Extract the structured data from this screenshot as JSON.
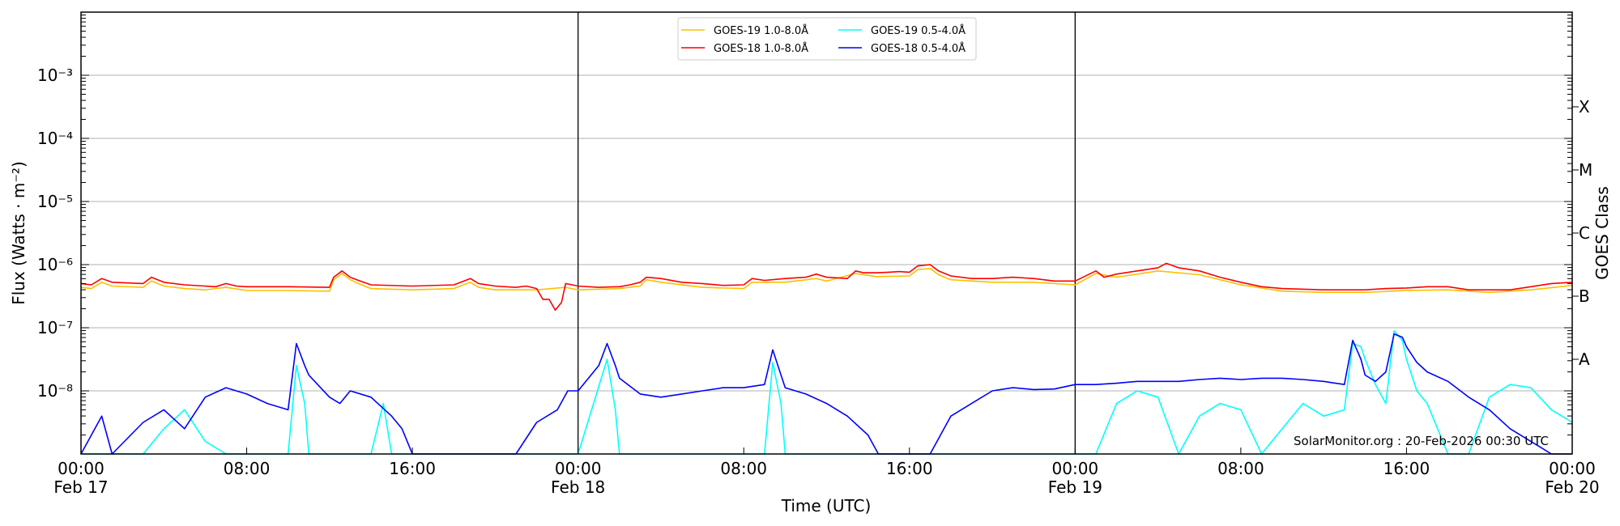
{
  "chart_data": {
    "type": "line",
    "title": "",
    "xlabel": "Time (UTC)",
    "ylabel": "Flux (Watts · m⁻²)",
    "ylabel_right": "GOES Class",
    "yscale": "log",
    "ylim": [
      1e-09,
      0.01
    ],
    "xlim_hours": [
      0,
      72
    ],
    "grid": "horizontal at each decade",
    "y_ticks": [
      "10⁻³",
      "10⁻⁴",
      "10⁻⁵",
      "10⁻⁶",
      "10⁻⁷",
      "10⁻⁸"
    ],
    "y_tick_exponents": [
      -3,
      -4,
      -5,
      -6,
      -7,
      -8
    ],
    "right_ticks": [
      {
        "label": "X",
        "log": -3.5
      },
      {
        "label": "M",
        "log": -4.5
      },
      {
        "label": "C",
        "log": -5.5
      },
      {
        "label": "B",
        "log": -6.5
      },
      {
        "label": "A",
        "log": -7.5
      }
    ],
    "x_ticks": [
      {
        "hour": 0,
        "line1": "00:00",
        "line2": "Feb 17"
      },
      {
        "hour": 8,
        "line1": "08:00",
        "line2": ""
      },
      {
        "hour": 16,
        "line1": "16:00",
        "line2": ""
      },
      {
        "hour": 24,
        "line1": "00:00",
        "line2": "Feb 18"
      },
      {
        "hour": 32,
        "line1": "08:00",
        "line2": ""
      },
      {
        "hour": 40,
        "line1": "16:00",
        "line2": ""
      },
      {
        "hour": 48,
        "line1": "00:00",
        "line2": "Feb 19"
      },
      {
        "hour": 56,
        "line1": "08:00",
        "line2": ""
      },
      {
        "hour": 64,
        "line1": "16:00",
        "line2": ""
      },
      {
        "hour": 72,
        "line1": "00:00",
        "line2": "Feb 20"
      }
    ],
    "day_boundaries_hours": [
      24,
      48
    ],
    "legend": {
      "position": "upper center",
      "entries": [
        {
          "label": "GOES-19 1.0-8.0Å",
          "color": "#FFC000"
        },
        {
          "label": "GOES-18 1.0-8.0Å",
          "color": "#FF0000"
        },
        {
          "label": "GOES-19 0.5-4.0Å",
          "color": "#00FFFF"
        },
        {
          "label": "GOES-18 0.5-4.0Å",
          "color": "#0000FF"
        }
      ]
    },
    "annotation": "SolarMonitor.org : 20-Feb-2026 00:30 UTC",
    "series": [
      {
        "name": "GOES-18 1.0-8.0Å",
        "color": "#FF0000",
        "points_hour_log10": [
          [
            0,
            -6.3
          ],
          [
            0.5,
            -6.32
          ],
          [
            1,
            -6.22
          ],
          [
            1.5,
            -6.28
          ],
          [
            3,
            -6.3
          ],
          [
            3.4,
            -6.2
          ],
          [
            4,
            -6.28
          ],
          [
            5,
            -6.32
          ],
          [
            6,
            -6.34
          ],
          [
            6.5,
            -6.35
          ],
          [
            7,
            -6.3
          ],
          [
            7.5,
            -6.34
          ],
          [
            8,
            -6.35
          ],
          [
            10,
            -6.35
          ],
          [
            12,
            -6.36
          ],
          [
            12.2,
            -6.2
          ],
          [
            12.6,
            -6.1
          ],
          [
            13,
            -6.2
          ],
          [
            13.4,
            -6.25
          ],
          [
            14,
            -6.32
          ],
          [
            16,
            -6.34
          ],
          [
            18,
            -6.32
          ],
          [
            18.8,
            -6.22
          ],
          [
            19.2,
            -6.3
          ],
          [
            20,
            -6.34
          ],
          [
            21,
            -6.36
          ],
          [
            21.5,
            -6.34
          ],
          [
            22,
            -6.38
          ],
          [
            22.3,
            -6.55
          ],
          [
            22.6,
            -6.55
          ],
          [
            22.9,
            -6.72
          ],
          [
            23.2,
            -6.6
          ],
          [
            23.4,
            -6.3
          ],
          [
            24,
            -6.34
          ],
          [
            25,
            -6.36
          ],
          [
            26,
            -6.35
          ],
          [
            26.5,
            -6.32
          ],
          [
            27,
            -6.28
          ],
          [
            27.3,
            -6.2
          ],
          [
            28,
            -6.22
          ],
          [
            29,
            -6.28
          ],
          [
            30,
            -6.3
          ],
          [
            31,
            -6.33
          ],
          [
            32,
            -6.32
          ],
          [
            32.4,
            -6.22
          ],
          [
            33,
            -6.25
          ],
          [
            34,
            -6.22
          ],
          [
            35,
            -6.2
          ],
          [
            35.5,
            -6.15
          ],
          [
            36,
            -6.2
          ],
          [
            37,
            -6.22
          ],
          [
            37.4,
            -6.1
          ],
          [
            37.8,
            -6.13
          ],
          [
            38.4,
            -6.13
          ],
          [
            39,
            -6.12
          ],
          [
            39.5,
            -6.11
          ],
          [
            40,
            -6.12
          ],
          [
            40.4,
            -6.02
          ],
          [
            41,
            -6.0
          ],
          [
            41.4,
            -6.1
          ],
          [
            42,
            -6.18
          ],
          [
            43,
            -6.22
          ],
          [
            44,
            -6.22
          ],
          [
            45,
            -6.2
          ],
          [
            46,
            -6.22
          ],
          [
            47,
            -6.26
          ],
          [
            48,
            -6.26
          ],
          [
            49,
            -6.1
          ],
          [
            49.4,
            -6.2
          ],
          [
            50,
            -6.15
          ],
          [
            51,
            -6.1
          ],
          [
            52,
            -6.05
          ],
          [
            52.4,
            -5.98
          ],
          [
            53,
            -6.05
          ],
          [
            54,
            -6.1
          ],
          [
            55,
            -6.2
          ],
          [
            56,
            -6.28
          ],
          [
            57,
            -6.35
          ],
          [
            58,
            -6.38
          ],
          [
            60,
            -6.4
          ],
          [
            62,
            -6.4
          ],
          [
            63,
            -6.38
          ],
          [
            64,
            -6.37
          ],
          [
            65,
            -6.35
          ],
          [
            66,
            -6.35
          ],
          [
            67,
            -6.4
          ],
          [
            68,
            -6.4
          ],
          [
            69,
            -6.4
          ],
          [
            70,
            -6.35
          ],
          [
            71,
            -6.3
          ],
          [
            72,
            -6.28
          ]
        ]
      },
      {
        "name": "GOES-19 1.0-8.0Å",
        "color": "#FFC000",
        "points_hour_log10": [
          [
            0,
            -6.36
          ],
          [
            0.5,
            -6.38
          ],
          [
            1,
            -6.28
          ],
          [
            1.5,
            -6.34
          ],
          [
            3,
            -6.36
          ],
          [
            3.4,
            -6.26
          ],
          [
            4,
            -6.34
          ],
          [
            5,
            -6.38
          ],
          [
            6,
            -6.4
          ],
          [
            7,
            -6.36
          ],
          [
            8,
            -6.41
          ],
          [
            10,
            -6.41
          ],
          [
            12,
            -6.42
          ],
          [
            12.2,
            -6.24
          ],
          [
            12.6,
            -6.14
          ],
          [
            13,
            -6.24
          ],
          [
            13.4,
            -6.3
          ],
          [
            14,
            -6.38
          ],
          [
            16,
            -6.4
          ],
          [
            18,
            -6.38
          ],
          [
            18.8,
            -6.28
          ],
          [
            19.2,
            -6.36
          ],
          [
            20,
            -6.4
          ],
          [
            22,
            -6.4
          ],
          [
            23.4,
            -6.36
          ],
          [
            24,
            -6.4
          ],
          [
            26,
            -6.38
          ],
          [
            27,
            -6.34
          ],
          [
            27.3,
            -6.24
          ],
          [
            28,
            -6.28
          ],
          [
            30,
            -6.36
          ],
          [
            32,
            -6.38
          ],
          [
            32.4,
            -6.28
          ],
          [
            34,
            -6.28
          ],
          [
            35.5,
            -6.22
          ],
          [
            36,
            -6.26
          ],
          [
            37.4,
            -6.14
          ],
          [
            38.4,
            -6.19
          ],
          [
            40,
            -6.18
          ],
          [
            40.4,
            -6.08
          ],
          [
            41,
            -6.06
          ],
          [
            41.4,
            -6.16
          ],
          [
            42,
            -6.24
          ],
          [
            44,
            -6.28
          ],
          [
            46,
            -6.28
          ],
          [
            48,
            -6.32
          ],
          [
            49,
            -6.14
          ],
          [
            50,
            -6.2
          ],
          [
            52,
            -6.1
          ],
          [
            54,
            -6.16
          ],
          [
            56,
            -6.32
          ],
          [
            58,
            -6.42
          ],
          [
            60,
            -6.44
          ],
          [
            62,
            -6.44
          ],
          [
            64,
            -6.41
          ],
          [
            66,
            -6.4
          ],
          [
            68,
            -6.44
          ],
          [
            70,
            -6.4
          ],
          [
            72,
            -6.33
          ]
        ]
      },
      {
        "name": "GOES-18 0.5-4.0Å",
        "color": "#0000FF",
        "points_hour_log10": [
          [
            0,
            -9
          ],
          [
            1,
            -8.4
          ],
          [
            1.5,
            -9
          ],
          [
            3,
            -8.5
          ],
          [
            4,
            -8.3
          ],
          [
            5,
            -8.6
          ],
          [
            6,
            -8.1
          ],
          [
            7,
            -7.95
          ],
          [
            8,
            -8.05
          ],
          [
            9,
            -8.2
          ],
          [
            10,
            -8.3
          ],
          [
            10.4,
            -7.25
          ],
          [
            10.8,
            -7.6
          ],
          [
            11,
            -7.75
          ],
          [
            12,
            -8.1
          ],
          [
            12.5,
            -8.2
          ],
          [
            13,
            -8.0
          ],
          [
            14,
            -8.1
          ],
          [
            15,
            -8.4
          ],
          [
            15.5,
            -8.6
          ],
          [
            16,
            -9
          ],
          [
            18,
            -9
          ],
          [
            20,
            -9
          ],
          [
            21,
            -9
          ],
          [
            22,
            -8.5
          ],
          [
            23,
            -8.3
          ],
          [
            23.5,
            -8.0
          ],
          [
            24,
            -8.0
          ],
          [
            25,
            -7.6
          ],
          [
            25.4,
            -7.25
          ],
          [
            25.8,
            -7.6
          ],
          [
            26,
            -7.8
          ],
          [
            27,
            -8.05
          ],
          [
            28,
            -8.1
          ],
          [
            29,
            -8.05
          ],
          [
            30,
            -8.0
          ],
          [
            31,
            -7.95
          ],
          [
            32,
            -7.95
          ],
          [
            33,
            -7.9
          ],
          [
            33.4,
            -7.35
          ],
          [
            33.8,
            -7.75
          ],
          [
            34,
            -7.95
          ],
          [
            35,
            -8.05
          ],
          [
            36,
            -8.2
          ],
          [
            37,
            -8.4
          ],
          [
            38,
            -8.7
          ],
          [
            38.5,
            -9
          ],
          [
            40,
            -9
          ],
          [
            41,
            -9
          ],
          [
            42,
            -8.4
          ],
          [
            43,
            -8.2
          ],
          [
            44,
            -8.0
          ],
          [
            45,
            -7.95
          ],
          [
            46,
            -7.98
          ],
          [
            47,
            -7.97
          ],
          [
            48,
            -7.9
          ],
          [
            49,
            -7.9
          ],
          [
            50,
            -7.88
          ],
          [
            51,
            -7.85
          ],
          [
            52,
            -7.85
          ],
          [
            53,
            -7.85
          ],
          [
            54,
            -7.82
          ],
          [
            55,
            -7.8
          ],
          [
            56,
            -7.82
          ],
          [
            57,
            -7.8
          ],
          [
            58,
            -7.8
          ],
          [
            59,
            -7.82
          ],
          [
            60,
            -7.85
          ],
          [
            61,
            -7.9
          ],
          [
            61.4,
            -7.2
          ],
          [
            61.8,
            -7.5
          ],
          [
            62,
            -7.75
          ],
          [
            62.5,
            -7.85
          ],
          [
            63,
            -7.7
          ],
          [
            63.4,
            -7.1
          ],
          [
            63.8,
            -7.15
          ],
          [
            64,
            -7.3
          ],
          [
            64.5,
            -7.55
          ],
          [
            65,
            -7.7
          ],
          [
            66,
            -7.85
          ],
          [
            67,
            -8.1
          ],
          [
            68,
            -8.3
          ],
          [
            69,
            -8.6
          ],
          [
            70,
            -8.8
          ],
          [
            71,
            -9
          ],
          [
            72,
            -9
          ]
        ]
      },
      {
        "name": "GOES-19 0.5-4.0Å",
        "color": "#00FFFF",
        "points_hour_log10": [
          [
            0,
            -9
          ],
          [
            3,
            -9
          ],
          [
            4,
            -8.6
          ],
          [
            5,
            -8.3
          ],
          [
            6,
            -8.8
          ],
          [
            7,
            -9
          ],
          [
            10,
            -9
          ],
          [
            10.4,
            -7.6
          ],
          [
            10.8,
            -8.2
          ],
          [
            11,
            -9
          ],
          [
            14,
            -9
          ],
          [
            14.6,
            -8.2
          ],
          [
            15,
            -9
          ],
          [
            20,
            -9
          ],
          [
            24,
            -9
          ],
          [
            25.4,
            -7.5
          ],
          [
            25.8,
            -8.3
          ],
          [
            26,
            -9
          ],
          [
            33,
            -9
          ],
          [
            33.4,
            -7.55
          ],
          [
            33.8,
            -8.2
          ],
          [
            34,
            -9
          ],
          [
            40,
            -9
          ],
          [
            41,
            -9
          ],
          [
            42,
            -9
          ],
          [
            48,
            -9
          ],
          [
            49,
            -9
          ],
          [
            50,
            -8.2
          ],
          [
            51,
            -8.0
          ],
          [
            52,
            -8.1
          ],
          [
            53,
            -9
          ],
          [
            54,
            -8.4
          ],
          [
            55,
            -8.2
          ],
          [
            56,
            -8.3
          ],
          [
            57,
            -9
          ],
          [
            58,
            -8.6
          ],
          [
            59,
            -8.2
          ],
          [
            60,
            -8.4
          ],
          [
            61,
            -8.3
          ],
          [
            61.4,
            -7.25
          ],
          [
            61.8,
            -7.3
          ],
          [
            62,
            -7.5
          ],
          [
            62.5,
            -7.9
          ],
          [
            63,
            -8.2
          ],
          [
            63.4,
            -7.05
          ],
          [
            63.8,
            -7.2
          ],
          [
            64,
            -7.5
          ],
          [
            64.5,
            -8.0
          ],
          [
            65,
            -8.2
          ],
          [
            66,
            -9
          ],
          [
            67,
            -9
          ],
          [
            68,
            -8.1
          ],
          [
            69,
            -7.9
          ],
          [
            70,
            -7.95
          ],
          [
            71,
            -8.3
          ],
          [
            72,
            -8.5
          ]
        ]
      }
    ]
  }
}
